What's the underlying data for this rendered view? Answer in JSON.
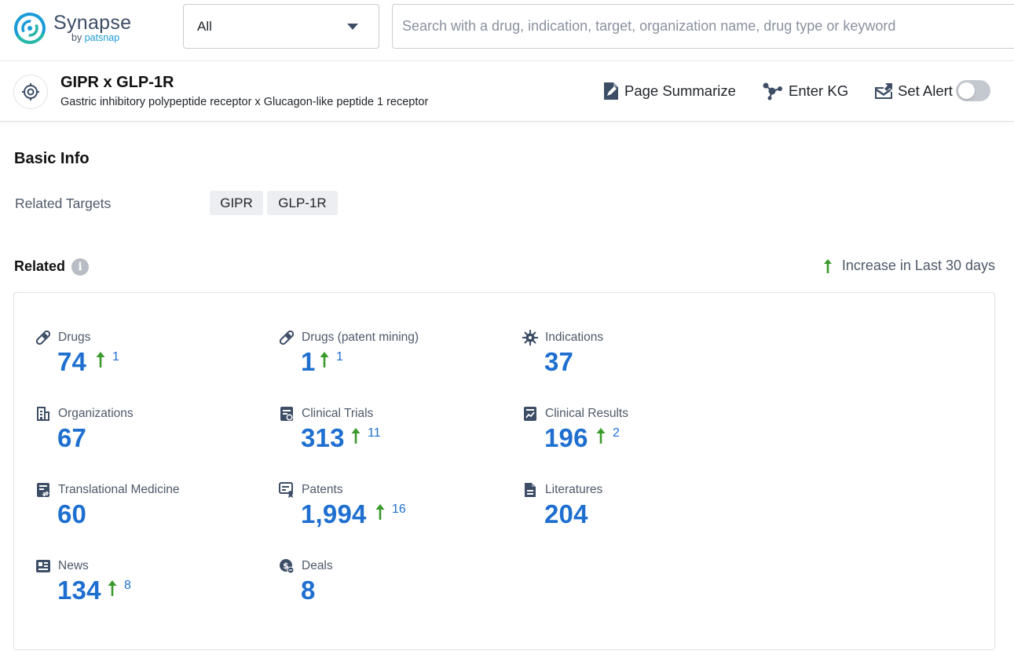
{
  "header": {
    "logo_name": "Synapse",
    "logo_by": "by",
    "logo_brand": "patsnap",
    "scope_value": "All",
    "search_placeholder": "Search with a drug, indication, target, organization name, drug type or keyword"
  },
  "target": {
    "title": "GIPR x GLP-1R",
    "subtitle": "Gastric inhibitory polypeptide receptor x Glucagon-like peptide 1 receptor",
    "actions": {
      "summarize": "Page Summarize",
      "enter_kg": "Enter KG",
      "set_alert": "Set Alert"
    }
  },
  "basic_info": {
    "title": "Basic Info",
    "related_targets_label": "Related Targets",
    "tags": [
      "GIPR",
      "GLP-1R"
    ]
  },
  "related": {
    "title": "Related",
    "legend": "Increase in Last 30 days",
    "stats": [
      {
        "label": "Drugs",
        "value": "74",
        "increase": "1",
        "icon": "pill-icon"
      },
      {
        "label": "Drugs (patent mining)",
        "value": "1",
        "increase": "1",
        "icon": "pill-icon"
      },
      {
        "label": "Indications",
        "value": "37",
        "increase": "",
        "icon": "virus-icon"
      },
      {
        "label": "Organizations",
        "value": "67",
        "increase": "",
        "icon": "building-icon"
      },
      {
        "label": "Clinical Trials",
        "value": "313",
        "increase": "11",
        "icon": "clinical-trials-icon"
      },
      {
        "label": "Clinical Results",
        "value": "196",
        "increase": "2",
        "icon": "chart-doc-icon"
      },
      {
        "label": "Translational Medicine",
        "value": "60",
        "increase": "",
        "icon": "translational-icon"
      },
      {
        "label": "Patents",
        "value": "1,994",
        "increase": "16",
        "icon": "patent-icon"
      },
      {
        "label": "Literatures",
        "value": "204",
        "increase": "",
        "icon": "document-icon"
      },
      {
        "label": "News",
        "value": "134",
        "increase": "8",
        "icon": "news-icon"
      },
      {
        "label": "Deals",
        "value": "8",
        "increase": "",
        "icon": "deals-icon"
      }
    ]
  },
  "colors": {
    "accent_blue": "#1e6fd0",
    "increase_green": "#3a9a2c",
    "logo_teal": "#27b7a8",
    "logo_blue": "#1a9bd7"
  }
}
